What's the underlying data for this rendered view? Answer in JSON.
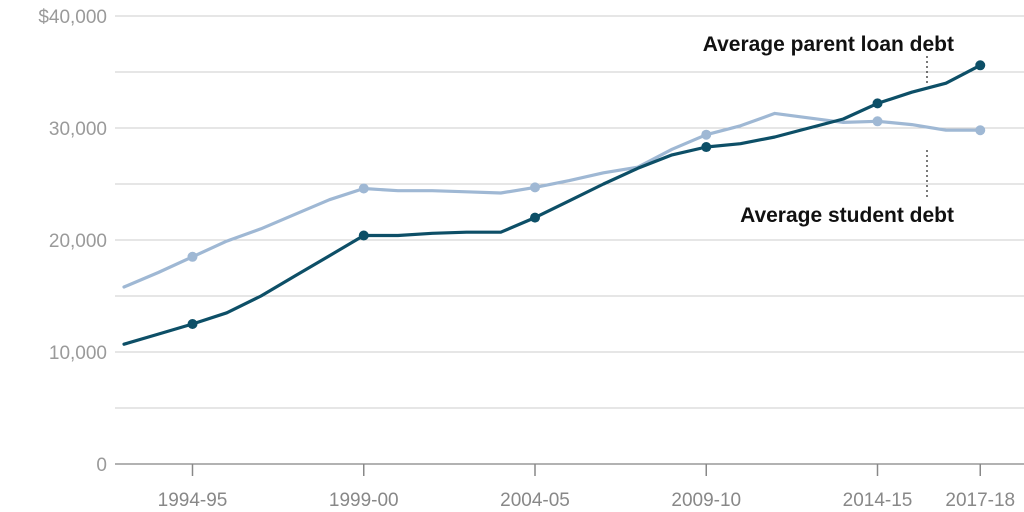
{
  "chart_data": {
    "type": "line",
    "x": [
      "1992-93",
      "1993-94",
      "1994-95",
      "1995-96",
      "1996-97",
      "1997-98",
      "1998-99",
      "1999-00",
      "2000-01",
      "2001-02",
      "2002-03",
      "2003-04",
      "2004-05",
      "2005-06",
      "2006-07",
      "2007-08",
      "2008-09",
      "2009-10",
      "2010-11",
      "2011-12",
      "2012-13",
      "2013-14",
      "2014-15",
      "2015-16",
      "2016-17",
      "2017-18"
    ],
    "x_tick_labels": [
      "1994-95",
      "1999-00",
      "2004-05",
      "2009-10",
      "2014-15",
      "2017-18"
    ],
    "y_ticks": [
      0,
      10000,
      20000,
      30000,
      40000
    ],
    "y_tick_labels": [
      "0",
      "10,000",
      "20,000",
      "30,000",
      "$40,000"
    ],
    "ylim": [
      0,
      40000
    ],
    "series": [
      {
        "name": "Average parent loan debt",
        "color": "#0d4f67",
        "values": [
          10700,
          11600,
          12500,
          13500,
          15000,
          16800,
          18600,
          20400,
          20400,
          20600,
          20700,
          20700,
          22000,
          23500,
          25000,
          26400,
          27600,
          28300,
          28600,
          29200,
          30000,
          30800,
          32200,
          33200,
          34000,
          35600
        ],
        "marked": [
          "1994-95",
          "1999-00",
          "2004-05",
          "2009-10",
          "2014-15",
          "2017-18"
        ]
      },
      {
        "name": "Average student debt",
        "color": "#9fb8d4",
        "values": [
          15800,
          17100,
          18500,
          19900,
          21000,
          22300,
          23600,
          24600,
          24400,
          24400,
          24300,
          24200,
          24700,
          25300,
          26000,
          26500,
          28100,
          29400,
          30200,
          31300,
          30900,
          30500,
          30600,
          30300,
          29800,
          29800
        ],
        "marked": [
          "1994-95",
          "1999-00",
          "2004-05",
          "2009-10",
          "2014-15",
          "2017-18"
        ]
      }
    ],
    "annotations": [
      {
        "text": "Average parent loan debt",
        "series": 0
      },
      {
        "text": "Average student debt",
        "series": 1
      }
    ],
    "grid": true,
    "title": "",
    "xlabel": "",
    "ylabel": ""
  }
}
